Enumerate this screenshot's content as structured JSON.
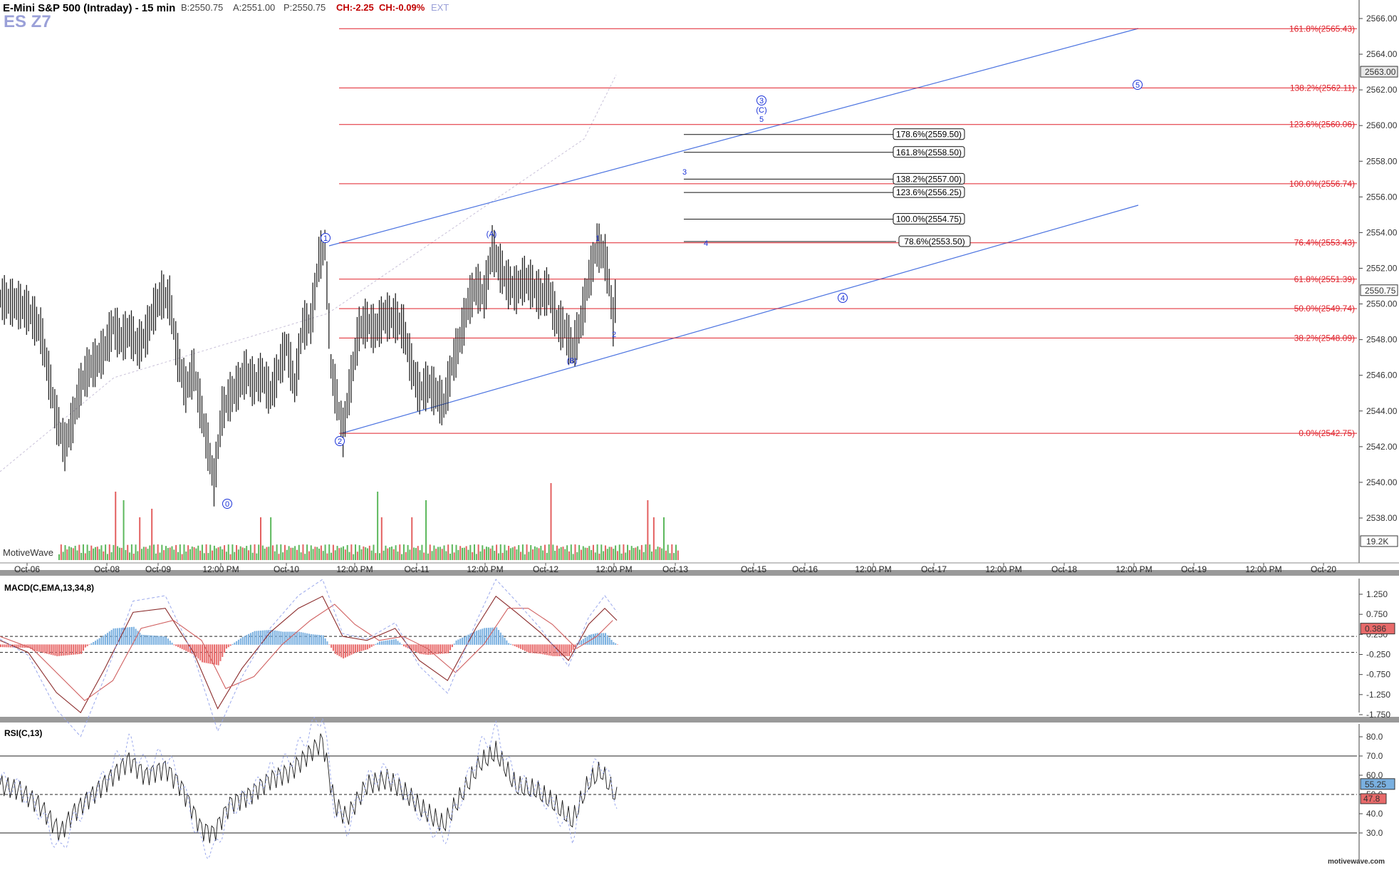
{
  "header": {
    "title": "E-Mini S&P 500 (Intraday) - 15 min",
    "bid": "B:2550.75",
    "ask": "A:2551.00",
    "price": "P:2550.75",
    "change": "CH:-2.25",
    "change_pct": "CH:-0.09%",
    "ext": "EXT",
    "symbol": "ES Z7",
    "watermark": "MotiveWave",
    "footer": "motivewave.com"
  },
  "colors": {
    "fib_red": "#e0202a",
    "wave_blue": "#1a32d8",
    "channel_blue": "#4a72e0",
    "bar": "#202020",
    "vol_up": "#5cb85c",
    "vol_down": "#e36060",
    "macd_pos": "#7ab0e0",
    "macd_neg": "#e86a6a"
  },
  "chart_data": [
    {
      "type": "ohlc",
      "title": "E-Mini S&P 500 (Intraday) - 15 min",
      "ylim": [
        2536,
        2567
      ],
      "price_ticks": [
        2538,
        2540,
        2542,
        2544,
        2546,
        2548,
        2550,
        2552,
        2554,
        2556,
        2558,
        2560,
        2562,
        2564,
        2566
      ],
      "price_tick_labels": [
        "2538.00",
        "2540.00",
        "2542.00",
        "2544.00",
        "2546.00",
        "2548.00",
        "2550.00",
        "2552.00",
        "2554.00",
        "2556.00",
        "2558.00",
        "2560.00",
        "2562.00",
        "2564.00",
        "2566.00"
      ],
      "current_price_label": "2550.75",
      "top_marker_label": "2563.00",
      "volume_label": "19.2K",
      "x_labels": [
        "Oct-06",
        "Oct-08",
        "Oct-09",
        "12:00 PM",
        "Oct-10",
        "12:00 PM",
        "Oct-11",
        "12:00 PM",
        "Oct-12",
        "12:00 PM",
        "Oct-13",
        "Oct-15",
        "Oct-16",
        "12:00 PM",
        "Oct-17",
        "12:00 PM",
        "Oct-18",
        "12:00 PM",
        "Oct-19",
        "12:00 PM",
        "Oct-20"
      ],
      "price_path": [
        [
          0,
          2550.3
        ],
        [
          8,
          2550.0
        ],
        [
          14,
          2549.6
        ],
        [
          20,
          2548.5
        ],
        [
          24,
          2546.0
        ],
        [
          28,
          2543.5
        ],
        [
          32,
          2542.0
        ],
        [
          36,
          2543.5
        ],
        [
          40,
          2545.5
        ],
        [
          44,
          2546.4
        ],
        [
          48,
          2546.8
        ],
        [
          52,
          2547.5
        ],
        [
          56,
          2548.8
        ],
        [
          60,
          2548.0
        ],
        [
          64,
          2548.5
        ],
        [
          68,
          2547.6
        ],
        [
          72,
          2548.2
        ],
        [
          76,
          2549.6
        ],
        [
          80,
          2550.5
        ],
        [
          84,
          2550.2
        ],
        [
          88,
          2547.0
        ],
        [
          92,
          2545.2
        ],
        [
          96,
          2546.3
        ],
        [
          100,
          2543.8
        ],
        [
          103,
          2542.0
        ],
        [
          106,
          2540.0
        ],
        [
          110,
          2544.0
        ],
        [
          114,
          2544.8
        ],
        [
          118,
          2545.4
        ],
        [
          122,
          2546.2
        ],
        [
          126,
          2545.5
        ],
        [
          130,
          2546.0
        ],
        [
          134,
          2544.9
        ],
        [
          138,
          2546.3
        ],
        [
          142,
          2547.7
        ],
        [
          146,
          2545.3
        ],
        [
          150,
          2548.8
        ],
        [
          154,
          2548.9
        ],
        [
          158,
          2552.5
        ],
        [
          161,
          2553.3
        ],
        [
          164,
          2546.5
        ],
        [
          168,
          2544.0
        ],
        [
          170,
          2542.8
        ],
        [
          174,
          2545.8
        ],
        [
          178,
          2548.6
        ],
        [
          182,
          2549.0
        ],
        [
          186,
          2548.5
        ],
        [
          190,
          2549.3
        ],
        [
          196,
          2549.2
        ],
        [
          200,
          2548.6
        ],
        [
          204,
          2546.5
        ],
        [
          208,
          2545.0
        ],
        [
          212,
          2545.5
        ],
        [
          216,
          2545.0
        ],
        [
          220,
          2544.3
        ],
        [
          224,
          2546.5
        ],
        [
          228,
          2548.0
        ],
        [
          232,
          2550.0
        ],
        [
          236,
          2551.0
        ],
        [
          240,
          2550.4
        ],
        [
          244,
          2553.1
        ],
        [
          248,
          2552.0
        ],
        [
          252,
          2551.1
        ],
        [
          256,
          2550.8
        ],
        [
          260,
          2551.4
        ],
        [
          264,
          2551.0
        ],
        [
          268,
          2550.4
        ],
        [
          272,
          2550.8
        ],
        [
          276,
          2549.0
        ],
        [
          280,
          2548.6
        ],
        [
          284,
          2547.4
        ],
        [
          288,
          2549.0
        ],
        [
          292,
          2551.4
        ],
        [
          296,
          2553.3
        ],
        [
          300,
          2552.6
        ],
        [
          302,
          2551.2
        ],
        [
          304,
          2549.0
        ],
        [
          306,
          2551.3
        ]
      ],
      "fib_red": [
        {
          "label": "161.8%(2565.43)",
          "value": 2565.43
        },
        {
          "label": "138.2%(2562.11)",
          "value": 2562.11
        },
        {
          "label": "123.6%(2560.06)",
          "value": 2560.06
        },
        {
          "label": "100.0%(2556.74)",
          "value": 2556.74
        },
        {
          "label": "76.4%(2553.43)",
          "value": 2553.43
        },
        {
          "label": "61.8%(2551.39)",
          "value": 2551.39
        },
        {
          "label": "50.0%(2549.74)",
          "value": 2549.74
        },
        {
          "label": "38.2%(2548.09)",
          "value": 2548.09
        },
        {
          "label": "0.0%(2542.75)",
          "value": 2542.75
        }
      ],
      "fib_black": [
        {
          "label": "178.6%(2559.50)",
          "value": 2559.5
        },
        {
          "label": "161.8%(2558.50)",
          "value": 2558.5
        },
        {
          "label": "138.2%(2557.00)",
          "value": 2557.0
        },
        {
          "label": "123.6%(2556.25)",
          "value": 2556.25
        },
        {
          "label": "100.0%(2554.75)",
          "value": 2554.75
        },
        {
          "label": "78.6%(2553.50)",
          "value": 2553.5
        }
      ],
      "wave_labels_circled": [
        {
          "text": "0",
          "x": 103,
          "y": 2538.4
        },
        {
          "text": "1",
          "x": 161,
          "y": 2554.3
        },
        {
          "text": "2",
          "x": 170,
          "y": 2542.0
        },
        {
          "text": "3",
          "x": 375,
          "y": 2561.5
        },
        {
          "text": "4",
          "x": 415,
          "y": 2550.0
        },
        {
          "text": "5",
          "x": 565,
          "y": 2561.2
        }
      ],
      "wave_labels_plain": [
        {
          "text": "(A)",
          "x": 244,
          "y": 2554.0
        },
        {
          "text": "(B)",
          "x": 284,
          "y": 2546.2
        },
        {
          "text": "(C)",
          "x": 375,
          "y": 2560.9
        },
        {
          "text": "5",
          "x": 375,
          "y": 2560.0
        },
        {
          "text": "3",
          "x": 340,
          "y": 2557.7
        },
        {
          "text": "4",
          "x": 350,
          "y": 2553.5
        },
        {
          "text": "1",
          "x": 296,
          "y": 2553.9
        },
        {
          "text": "2",
          "x": 304,
          "y": 2548.3
        }
      ]
    },
    {
      "type": "macd",
      "title": "MACD(C,EMA,13,34,8)",
      "ylim": [
        -2.0,
        1.6
      ],
      "ticks": [
        "1.250",
        "0.750",
        "0.250",
        "-0.250",
        "-0.750",
        "-1.250",
        "-1.750"
      ],
      "tick_values": [
        1.25,
        0.75,
        0.25,
        -0.25,
        -0.75,
        -1.25,
        -1.75
      ],
      "value_label": "0.386",
      "macd": [
        [
          0,
          0.1
        ],
        [
          14,
          -0.2
        ],
        [
          28,
          -1.2
        ],
        [
          40,
          -1.7
        ],
        [
          52,
          -0.6
        ],
        [
          66,
          0.8
        ],
        [
          82,
          0.9
        ],
        [
          96,
          -0.2
        ],
        [
          108,
          -1.6
        ],
        [
          120,
          -0.6
        ],
        [
          134,
          0.3
        ],
        [
          148,
          0.9
        ],
        [
          160,
          1.2
        ],
        [
          170,
          0.2
        ],
        [
          182,
          0.1
        ],
        [
          196,
          0.4
        ],
        [
          208,
          -0.4
        ],
        [
          222,
          -0.9
        ],
        [
          236,
          0.4
        ],
        [
          246,
          1.2
        ],
        [
          256,
          0.8
        ],
        [
          268,
          0.3
        ],
        [
          282,
          -0.4
        ],
        [
          292,
          0.5
        ],
        [
          300,
          0.9
        ],
        [
          306,
          0.6
        ]
      ],
      "signal": [
        [
          0,
          0.2
        ],
        [
          16,
          -0.1
        ],
        [
          30,
          -0.8
        ],
        [
          42,
          -1.4
        ],
        [
          56,
          -0.9
        ],
        [
          70,
          0.4
        ],
        [
          86,
          0.6
        ],
        [
          100,
          0.1
        ],
        [
          112,
          -1.1
        ],
        [
          126,
          -0.8
        ],
        [
          140,
          0.0
        ],
        [
          154,
          0.6
        ],
        [
          166,
          1.0
        ],
        [
          176,
          0.5
        ],
        [
          188,
          0.1
        ],
        [
          200,
          0.2
        ],
        [
          212,
          -0.1
        ],
        [
          226,
          -0.7
        ],
        [
          240,
          0.0
        ],
        [
          252,
          0.9
        ],
        [
          262,
          0.9
        ],
        [
          274,
          0.5
        ],
        [
          286,
          -0.1
        ],
        [
          296,
          0.2
        ],
        [
          304,
          0.6
        ]
      ],
      "hist_zero_value": 0.0
    },
    {
      "type": "rsi",
      "title": "RSI(C,13)",
      "ylim": [
        25,
        87
      ],
      "ticks": [
        "80.0",
        "70.0",
        "60.0",
        "50.0",
        "40.0",
        "30.0"
      ],
      "tick_values": [
        80,
        70,
        60,
        50,
        40,
        30
      ],
      "value_label": "55.25",
      "value_label2": "47.8",
      "levels": [
        70,
        50,
        30
      ],
      "rsi": [
        [
          0,
          55
        ],
        [
          10,
          52
        ],
        [
          20,
          44
        ],
        [
          30,
          30
        ],
        [
          36,
          40
        ],
        [
          44,
          48
        ],
        [
          54,
          58
        ],
        [
          64,
          68
        ],
        [
          72,
          60
        ],
        [
          82,
          64
        ],
        [
          90,
          54
        ],
        [
          100,
          32
        ],
        [
          106,
          30
        ],
        [
          114,
          45
        ],
        [
          124,
          50
        ],
        [
          134,
          58
        ],
        [
          144,
          62
        ],
        [
          152,
          70
        ],
        [
          160,
          78
        ],
        [
          166,
          45
        ],
        [
          172,
          38
        ],
        [
          182,
          55
        ],
        [
          192,
          58
        ],
        [
          200,
          52
        ],
        [
          210,
          42
        ],
        [
          220,
          34
        ],
        [
          228,
          48
        ],
        [
          238,
          66
        ],
        [
          246,
          72
        ],
        [
          256,
          54
        ],
        [
          266,
          52
        ],
        [
          276,
          44
        ],
        [
          284,
          36
        ],
        [
          292,
          56
        ],
        [
          298,
          62
        ],
        [
          306,
          48
        ]
      ]
    }
  ]
}
